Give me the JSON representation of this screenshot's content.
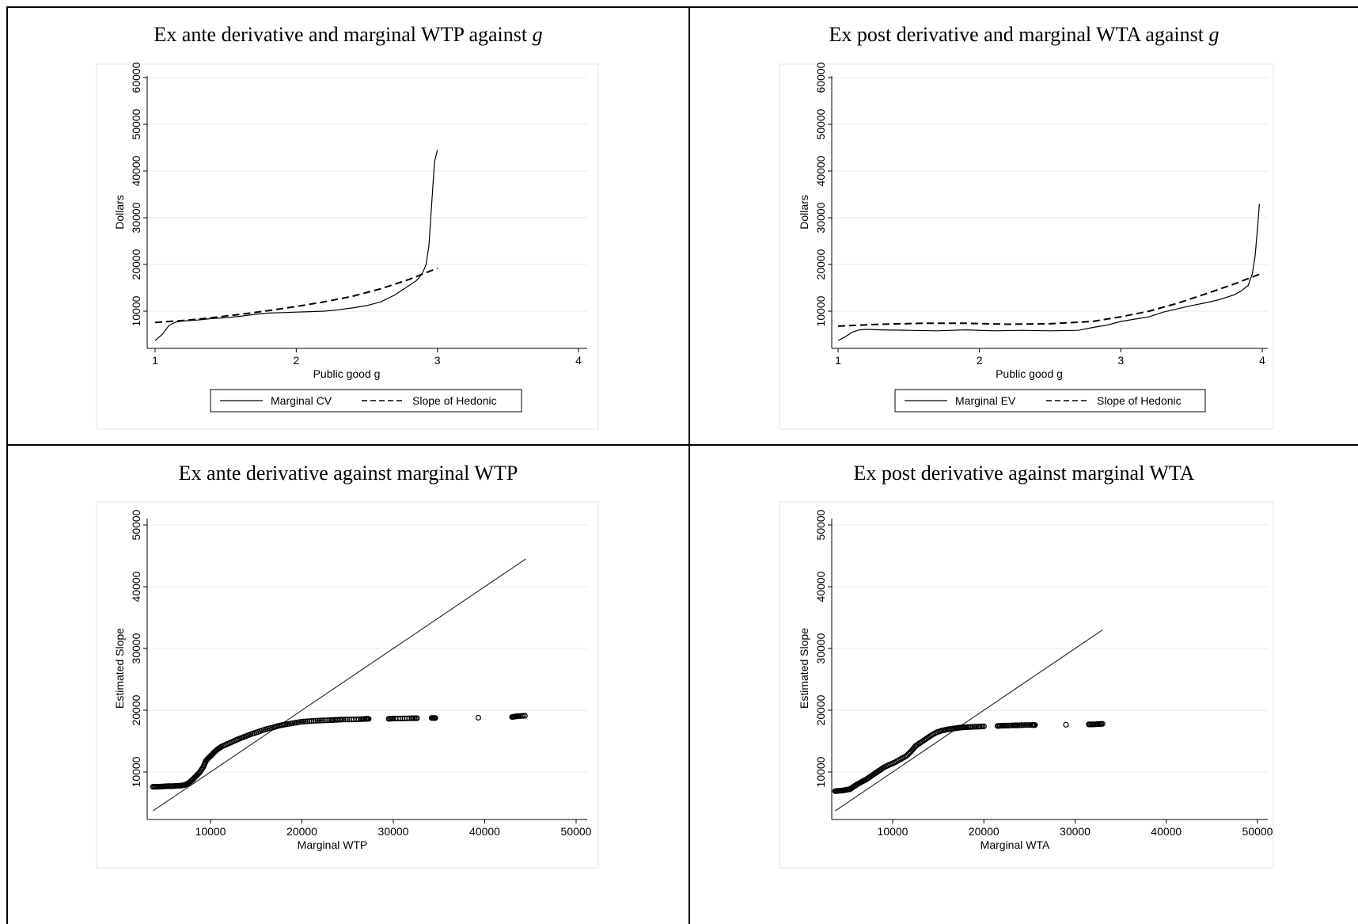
{
  "panels": [
    {
      "title": "Ex ante derivative and marginal WTP against ",
      "title_var": "g",
      "chart_data": {
        "type": "line",
        "xlabel": "Public good g",
        "ylabel": "Dollars",
        "xlim": [
          1,
          4
        ],
        "ylim": [
          0,
          60000
        ],
        "xticks": [
          1,
          2,
          3,
          4
        ],
        "yticks": [
          10000,
          20000,
          30000,
          40000,
          50000,
          60000
        ],
        "xtick_labels": [
          "1",
          "2",
          "3",
          "4"
        ],
        "ytick_labels": [
          "10000",
          "20000",
          "30000",
          "40000",
          "50000",
          "60000"
        ],
        "grid": "horizontal",
        "legend_position": "bottom",
        "series": [
          {
            "name": "Marginal CV",
            "style": "solid",
            "x": [
              1.0,
              1.05,
              1.1,
              1.15,
              1.2,
              1.3,
              1.4,
              1.5,
              1.6,
              1.7,
              1.8,
              1.9,
              2.0,
              2.1,
              2.2,
              2.3,
              2.4,
              2.5,
              2.6,
              2.7,
              2.75,
              2.8,
              2.85,
              2.88,
              2.9,
              2.92,
              2.94,
              2.96,
              2.98,
              3.0
            ],
            "y": [
              3700,
              5000,
              7000,
              7700,
              7900,
              8100,
              8400,
              8600,
              8900,
              9300,
              9600,
              9700,
              9800,
              9900,
              10000,
              10300,
              10700,
              11200,
              12000,
              13500,
              14500,
              15500,
              16500,
              17500,
              18500,
              20000,
              24000,
              33000,
              42000,
              44500
            ]
          },
          {
            "name": "Slope of Hedonic",
            "style": "dashed",
            "x": [
              1.0,
              1.2,
              1.4,
              1.6,
              1.8,
              2.0,
              2.2,
              2.4,
              2.6,
              2.8,
              3.0
            ],
            "y": [
              7600,
              8000,
              8600,
              9300,
              10100,
              11000,
              12000,
              13200,
              14800,
              16800,
              19200
            ]
          }
        ]
      }
    },
    {
      "title": "Ex post derivative and marginal WTA against ",
      "title_var": "g",
      "chart_data": {
        "type": "line",
        "xlabel": "Public good g",
        "ylabel": "Dollars",
        "xlim": [
          1,
          4
        ],
        "ylim": [
          0,
          60000
        ],
        "xticks": [
          1,
          2,
          3,
          4
        ],
        "yticks": [
          10000,
          20000,
          30000,
          40000,
          50000,
          60000
        ],
        "xtick_labels": [
          "1",
          "2",
          "3",
          "4"
        ],
        "ytick_labels": [
          "10000",
          "20000",
          "30000",
          "40000",
          "50000",
          "60000"
        ],
        "grid": "horizontal",
        "legend_position": "bottom",
        "series": [
          {
            "name": "Marginal EV",
            "style": "solid",
            "x": [
              1.0,
              1.05,
              1.1,
              1.15,
              1.2,
              1.3,
              1.5,
              1.7,
              1.9,
              2.1,
              2.3,
              2.5,
              2.7,
              2.8,
              2.9,
              3.0,
              3.1,
              3.2,
              3.3,
              3.4,
              3.5,
              3.6,
              3.7,
              3.8,
              3.85,
              3.9,
              3.93,
              3.95,
              3.97,
              3.98
            ],
            "y": [
              3700,
              4500,
              5500,
              6000,
              6100,
              6000,
              5900,
              5800,
              6000,
              5800,
              5900,
              5800,
              5900,
              6500,
              7000,
              7800,
              8300,
              8800,
              9800,
              10500,
              11200,
              11800,
              12500,
              13500,
              14300,
              15500,
              18000,
              22000,
              29000,
              33000
            ]
          },
          {
            "name": "Slope of Hedonic",
            "style": "dashed",
            "x": [
              1.0,
              1.3,
              1.6,
              1.9,
              2.2,
              2.5,
              2.8,
              3.0,
              3.2,
              3.4,
              3.6,
              3.8,
              3.98
            ],
            "y": [
              6800,
              7200,
              7400,
              7400,
              7200,
              7300,
              7800,
              8800,
              10000,
              11700,
              13700,
              15800,
              17900
            ]
          }
        ]
      }
    },
    {
      "title": "Ex ante derivative against marginal WTP",
      "title_var": "",
      "chart_data": {
        "type": "scatter",
        "xlabel": "Marginal WTP",
        "ylabel": "Estimated Slope",
        "xlim": [
          3000,
          50000
        ],
        "ylim": [
          3000,
          50000
        ],
        "xticks": [
          10000,
          20000,
          30000,
          40000,
          50000
        ],
        "yticks": [
          10000,
          20000,
          30000,
          40000,
          50000
        ],
        "xtick_labels": [
          "10000",
          "20000",
          "30000",
          "40000",
          "50000"
        ],
        "ytick_labels": [
          "10000",
          "20000",
          "30000",
          "40000",
          "50000"
        ],
        "grid": "horizontal",
        "reference_line": {
          "x": [
            3700,
            44500
          ],
          "y": [
            3700,
            44500
          ]
        },
        "points": {
          "x": [
            3700,
            4200,
            4800,
            5300,
            5800,
            6300,
            6800,
            7200,
            7600,
            8000,
            8400,
            8800,
            9200,
            9500,
            9800,
            10100,
            10400,
            10800,
            11200,
            11800,
            12400,
            13000,
            13700,
            14400,
            15200,
            16000,
            16800,
            17500,
            18200,
            19000,
            19800,
            20600,
            21500,
            22300,
            23200,
            23800,
            24500,
            25400,
            26500,
            27000,
            27300,
            29500,
            30000,
            31000,
            32000,
            32600,
            34200,
            34600,
            39300,
            43000,
            43400,
            43700,
            44400
          ],
          "y": [
            7600,
            7600,
            7650,
            7700,
            7700,
            7750,
            7800,
            7900,
            8200,
            8700,
            9300,
            9900,
            10800,
            11800,
            12300,
            12700,
            13200,
            13700,
            14100,
            14500,
            14900,
            15300,
            15700,
            16100,
            16500,
            16900,
            17200,
            17500,
            17700,
            17900,
            18100,
            18200,
            18300,
            18350,
            18400,
            18450,
            18500,
            18500,
            18550,
            18600,
            18600,
            18600,
            18650,
            18650,
            18700,
            18700,
            18750,
            18750,
            18800,
            18900,
            19000,
            19050,
            19100
          ]
        }
      }
    },
    {
      "title": "Ex post derivative against marginal WTA",
      "title_var": "",
      "chart_data": {
        "type": "scatter",
        "xlabel": "Marginal WTA",
        "ylabel": "Estimated Slope",
        "xlim": [
          3000,
          50000
        ],
        "ylim": [
          3000,
          50000
        ],
        "xticks": [
          10000,
          20000,
          30000,
          40000,
          50000
        ],
        "yticks": [
          10000,
          20000,
          30000,
          40000,
          50000
        ],
        "xtick_labels": [
          "10000",
          "20000",
          "30000",
          "40000",
          "50000"
        ],
        "ytick_labels": [
          "10000",
          "20000",
          "30000",
          "40000",
          "50000"
        ],
        "grid": "horizontal",
        "reference_line": {
          "x": [
            3700,
            33000
          ],
          "y": [
            3700,
            33000
          ]
        },
        "points": {
          "x": [
            3700,
            4100,
            4500,
            4900,
            5300,
            5700,
            6100,
            6600,
            7100,
            7600,
            8100,
            8600,
            9100,
            9700,
            10300,
            10900,
            11500,
            12000,
            12500,
            13000,
            13600,
            14200,
            14800,
            15400,
            16000,
            16500,
            17000,
            17500,
            18000,
            18600,
            19400,
            20000,
            21500,
            22000,
            22500,
            23300,
            23700,
            24500,
            25300,
            25600,
            29000,
            31500,
            32000,
            32500,
            33000
          ],
          "y": [
            6900,
            6950,
            7000,
            7100,
            7200,
            7600,
            8000,
            8400,
            8800,
            9300,
            9800,
            10300,
            10800,
            11200,
            11600,
            12100,
            12600,
            13300,
            14200,
            14700,
            15300,
            15900,
            16400,
            16700,
            16900,
            17000,
            17100,
            17200,
            17250,
            17300,
            17350,
            17400,
            17450,
            17500,
            17500,
            17550,
            17550,
            17600,
            17600,
            17600,
            17650,
            17700,
            17700,
            17750,
            17800
          ]
        }
      }
    }
  ]
}
